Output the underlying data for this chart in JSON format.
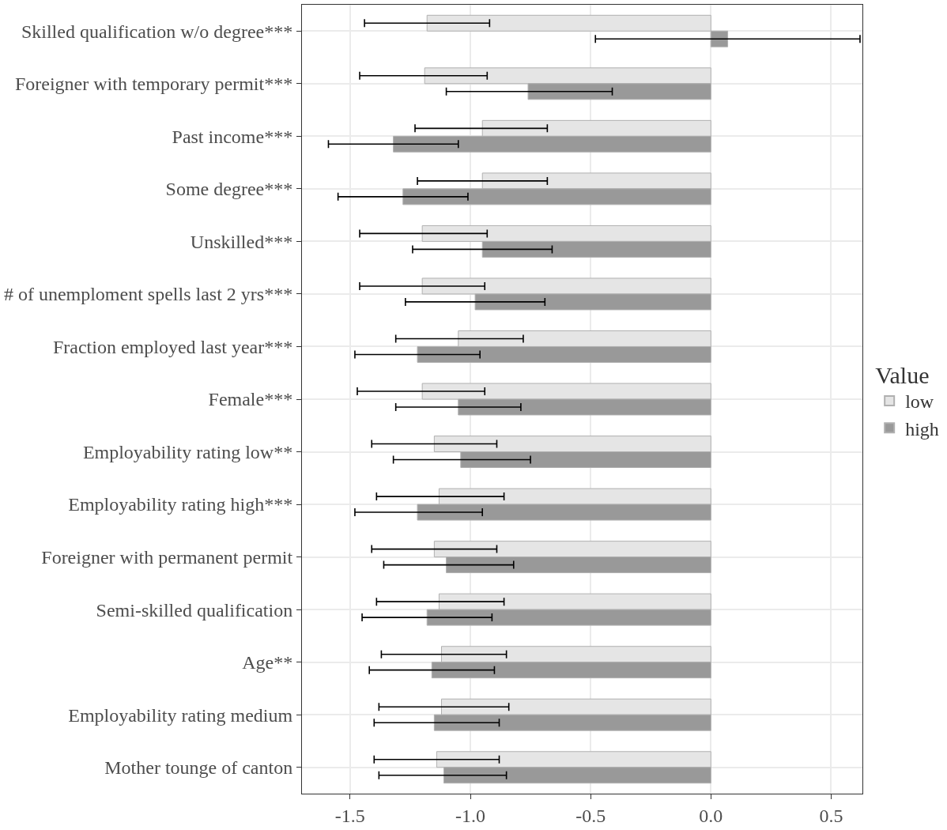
{
  "chart_data": {
    "type": "bar",
    "orientation": "horizontal",
    "legend_title": "Value",
    "legend": "right",
    "grid": true,
    "categories": [
      "Skilled qualification w/o degree***",
      "Foreigner with temporary permit***",
      "Past income***",
      "Some degree***",
      "Unskilled***",
      "# of unemploment spells last 2 yrs***",
      "Fraction employed last year***",
      "Female***",
      "Employability rating low**",
      "Employability rating high***",
      "Foreigner with permanent permit",
      "Semi-skilled qualification",
      "Age**",
      "Employability rating medium",
      "Mother tounge of canton"
    ],
    "xlim": [
      -1.7,
      0.63
    ],
    "xticks": [
      {
        "value": -1.5,
        "label": "-1.5"
      },
      {
        "value": -1.0,
        "label": "-1.0"
      },
      {
        "value": -0.5,
        "label": "-0.5"
      },
      {
        "value": 0.0,
        "label": "0.0"
      },
      {
        "value": 0.5,
        "label": "0.5"
      }
    ],
    "series": [
      {
        "name": "low",
        "color": "#e5e5e5",
        "values": [
          -1.18,
          -1.19,
          -0.95,
          -0.95,
          -1.2,
          -1.2,
          -1.05,
          -1.2,
          -1.15,
          -1.13,
          -1.15,
          -1.13,
          -1.12,
          -1.12,
          -1.14
        ],
        "errors": [
          [
            -1.44,
            -0.92
          ],
          [
            -1.46,
            -0.93
          ],
          [
            -1.23,
            -0.68
          ],
          [
            -1.22,
            -0.68
          ],
          [
            -1.46,
            -0.93
          ],
          [
            -1.46,
            -0.94
          ],
          [
            -1.31,
            -0.78
          ],
          [
            -1.47,
            -0.94
          ],
          [
            -1.41,
            -0.89
          ],
          [
            -1.39,
            -0.86
          ],
          [
            -1.41,
            -0.89
          ],
          [
            -1.39,
            -0.86
          ],
          [
            -1.37,
            -0.85
          ],
          [
            -1.38,
            -0.84
          ],
          [
            -1.4,
            -0.88
          ]
        ]
      },
      {
        "name": "high",
        "color": "#999999",
        "values": [
          0.07,
          -0.76,
          -1.32,
          -1.28,
          -0.95,
          -0.98,
          -1.22,
          -1.05,
          -1.04,
          -1.22,
          -1.1,
          -1.18,
          -1.16,
          -1.15,
          -1.11
        ],
        "errors": [
          [
            -0.48,
            0.62
          ],
          [
            -1.1,
            -0.41
          ],
          [
            -1.59,
            -1.05
          ],
          [
            -1.55,
            -1.01
          ],
          [
            -1.24,
            -0.66
          ],
          [
            -1.27,
            -0.69
          ],
          [
            -1.48,
            -0.96
          ],
          [
            -1.31,
            -0.79
          ],
          [
            -1.32,
            -0.75
          ],
          [
            -1.48,
            -0.95
          ],
          [
            -1.36,
            -0.82
          ],
          [
            -1.45,
            -0.91
          ],
          [
            -1.42,
            -0.9
          ],
          [
            -1.4,
            -0.88
          ],
          [
            -1.38,
            -0.85
          ]
        ]
      }
    ]
  }
}
